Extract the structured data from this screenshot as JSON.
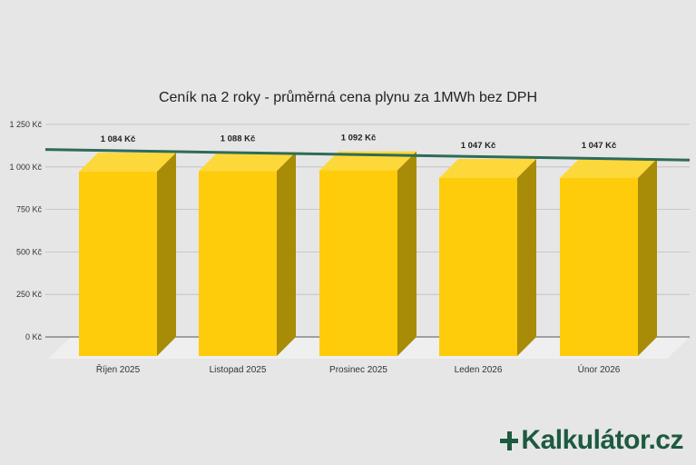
{
  "logo": {
    "text": "Kalkulátor.cz"
  },
  "chart_data": {
    "type": "bar",
    "title": "Ceník na 2 roky - průměrná cena plynu za 1MWh bez DPH",
    "categories": [
      "Říjen 2025",
      "Listopad 2025",
      "Prosinec 2025",
      "Leden 2026",
      "Únor 2026"
    ],
    "values": [
      1084,
      1088,
      1092,
      1047,
      1047
    ],
    "value_labels": [
      "1 084 Kč",
      "1 088 Kč",
      "1 092 Kč",
      "1 047 Kč",
      "1 047 Kč"
    ],
    "yticks": [
      0,
      250,
      500,
      750,
      1000,
      1250
    ],
    "ytick_labels": [
      "0 Kč",
      "250 Kč",
      "500 Kč",
      "750 Kč",
      "1 000 Kč",
      "1 250 Kč"
    ],
    "ylim": [
      0,
      1250
    ],
    "xlabel": "",
    "ylabel": "",
    "grid": true,
    "legend": "none",
    "style": "3d",
    "trendline": {
      "type": "linear",
      "color": "#2e6b5a"
    },
    "colors": {
      "bar_front": "#fecc0a",
      "bar_side": "#a88b06",
      "bar_top": "#fdd83a"
    }
  }
}
